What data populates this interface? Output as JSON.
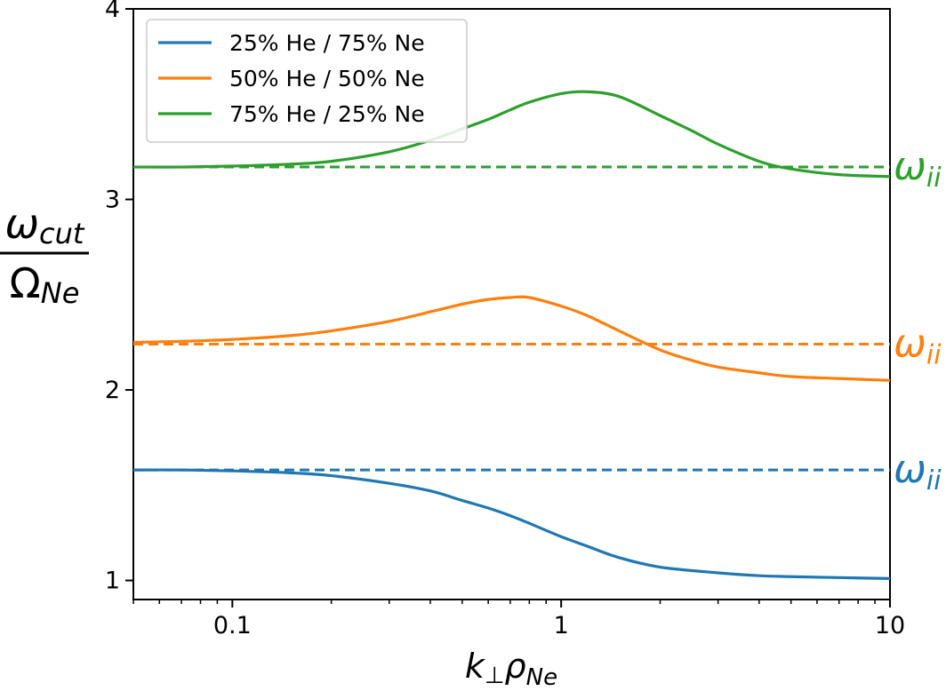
{
  "chart_data": {
    "type": "line",
    "title": "",
    "xlabel": {
      "main": "k",
      "sub1": "⊥",
      "mid": "ρ",
      "sub2": "Ne"
    },
    "ylabel": {
      "num_main": "ω",
      "num_sub": "cut",
      "den_main": "Ω",
      "den_sub": "Ne"
    },
    "xscale": "log",
    "xlim": [
      0.05,
      10
    ],
    "ylim": [
      0.9,
      4
    ],
    "xticks": [
      {
        "value": 0.1,
        "label": "0.1"
      },
      {
        "value": 1,
        "label": "1"
      },
      {
        "value": 10,
        "label": "10"
      }
    ],
    "yticks": [
      {
        "value": 1,
        "label": "1"
      },
      {
        "value": 2,
        "label": "2"
      },
      {
        "value": 3,
        "label": "3"
      },
      {
        "value": 4,
        "label": "4"
      }
    ],
    "grid": false,
    "legend_position": "top-left",
    "series": [
      {
        "name": "25% He / 75% Ne",
        "color": "#1f77b4",
        "x": [
          0.05,
          0.07,
          0.1,
          0.15,
          0.2,
          0.3,
          0.4,
          0.5,
          0.6,
          0.7,
          0.8,
          1.0,
          1.2,
          1.5,
          2.0,
          3.0,
          4.0,
          5.0,
          7.0,
          10.0
        ],
        "y": [
          1.58,
          1.58,
          1.575,
          1.565,
          1.55,
          1.51,
          1.47,
          1.42,
          1.38,
          1.34,
          1.3,
          1.23,
          1.18,
          1.12,
          1.07,
          1.04,
          1.025,
          1.02,
          1.015,
          1.01
        ]
      },
      {
        "name": "50% He / 50% Ne",
        "color": "#ff7f0e",
        "x": [
          0.05,
          0.07,
          0.1,
          0.15,
          0.2,
          0.3,
          0.4,
          0.5,
          0.6,
          0.7,
          0.8,
          1.0,
          1.2,
          1.5,
          2.0,
          2.5,
          3.0,
          4.0,
          5.0,
          7.0,
          10.0
        ],
        "y": [
          2.25,
          2.255,
          2.265,
          2.285,
          2.31,
          2.36,
          2.41,
          2.45,
          2.475,
          2.485,
          2.485,
          2.44,
          2.39,
          2.31,
          2.21,
          2.155,
          2.12,
          2.09,
          2.07,
          2.06,
          2.05
        ]
      },
      {
        "name": "75% He / 25% Ne",
        "color": "#2ca02c",
        "x": [
          0.05,
          0.07,
          0.1,
          0.15,
          0.2,
          0.3,
          0.4,
          0.5,
          0.6,
          0.7,
          0.8,
          1.0,
          1.2,
          1.5,
          2.0,
          2.5,
          3.0,
          4.0,
          5.0,
          7.0,
          10.0
        ],
        "y": [
          3.17,
          3.17,
          3.175,
          3.185,
          3.2,
          3.25,
          3.31,
          3.37,
          3.42,
          3.47,
          3.51,
          3.555,
          3.565,
          3.54,
          3.44,
          3.36,
          3.29,
          3.2,
          3.16,
          3.13,
          3.12
        ]
      }
    ],
    "reference_lines": [
      {
        "y": 1.58,
        "color": "#1f77b4",
        "label": {
          "main": "ω",
          "sub": "ii"
        }
      },
      {
        "y": 2.24,
        "color": "#ff7f0e",
        "label": {
          "main": "ω",
          "sub": "ii"
        }
      },
      {
        "y": 3.17,
        "color": "#2ca02c",
        "label": {
          "main": "ω",
          "sub": "ii"
        }
      }
    ]
  }
}
